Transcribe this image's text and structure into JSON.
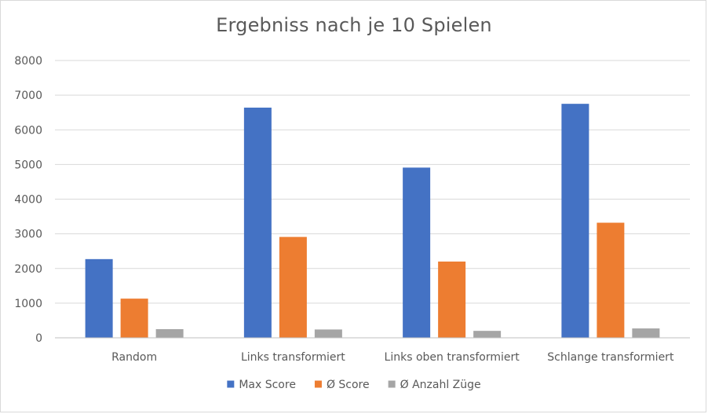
{
  "chart_data": {
    "type": "bar",
    "title": "Ergebniss nach je 10 Spielen",
    "categories": [
      "Random",
      "Links transformiert",
      "Links oben transformiert",
      "Schlange transformiert"
    ],
    "series": [
      {
        "name": "Max Score",
        "color": "#4472C4",
        "values": [
          2270,
          6640,
          4910,
          6750
        ]
      },
      {
        "name": "Ø Score",
        "color": "#ED7D31",
        "values": [
          1130,
          2910,
          2200,
          3320
        ]
      },
      {
        "name": "Ø Anzahl Züge",
        "color": "#A5A5A5",
        "values": [
          250,
          240,
          200,
          270
        ]
      }
    ],
    "ylim": [
      0,
      8000
    ],
    "yticks": [
      0,
      1000,
      2000,
      3000,
      4000,
      5000,
      6000,
      7000,
      8000
    ],
    "grid": true,
    "legend_position": "bottom"
  }
}
